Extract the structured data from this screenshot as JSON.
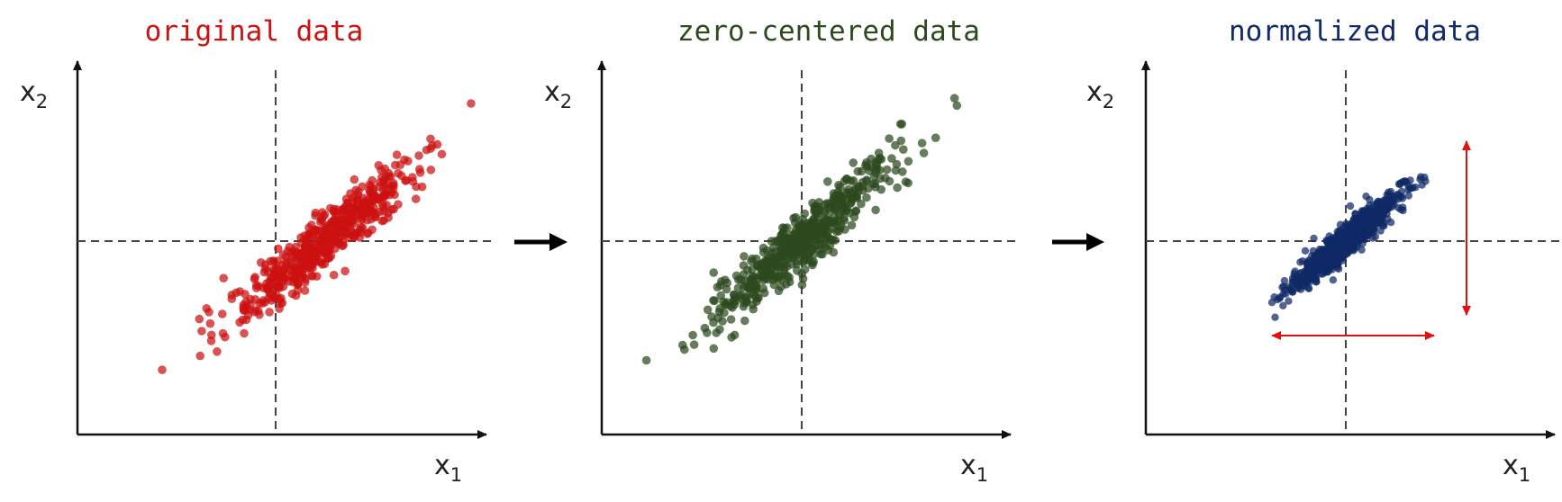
{
  "colors": {
    "original": "#cc1111",
    "zero_centered": "#2d4a1e",
    "normalized": "#0f2a66",
    "axis": "#111111",
    "guide": "#444444",
    "range_arrow": "#e31010",
    "flow_arrow": "#000000"
  },
  "axis_labels": {
    "x_main": "x",
    "x_sub": "1",
    "y_main": "x",
    "y_sub": "2"
  },
  "chart_data": [
    {
      "type": "scatter",
      "title": "original data",
      "color": "#cc1111",
      "xlim": [
        -3,
        3
      ],
      "ylim": [
        -3,
        3
      ],
      "guide_lines": {
        "x": 0,
        "y": 0
      },
      "cloud": {
        "center": [
          0.75,
          0.0
        ],
        "spread_along": 1.0,
        "spread_across": 0.18,
        "count": 520
      }
    },
    {
      "type": "scatter",
      "title": "zero-centered data",
      "color": "#2d4a1e",
      "xlim": [
        -3,
        3
      ],
      "ylim": [
        -3,
        3
      ],
      "guide_lines": {
        "x": 0,
        "y": 0
      },
      "cloud": {
        "center": [
          0.0,
          0.0
        ],
        "spread_along": 1.0,
        "spread_across": 0.18,
        "count": 520
      }
    },
    {
      "type": "scatter",
      "title": "normalized data",
      "color": "#0f2a66",
      "xlim": [
        -3,
        3
      ],
      "ylim": [
        -3,
        3
      ],
      "guide_lines": {
        "x": 0,
        "y": 0
      },
      "cloud": {
        "center": [
          0.0,
          0.0
        ],
        "spread_along": 0.55,
        "spread_across": 0.1,
        "count": 900
      },
      "annotations": [
        "horizontal double arrow marking x1 range",
        "vertical double arrow marking x2 range"
      ]
    }
  ]
}
